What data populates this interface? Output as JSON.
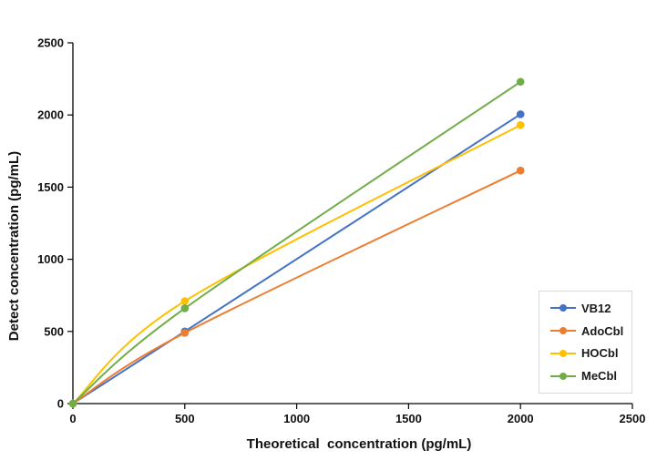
{
  "chart_data": {
    "type": "line",
    "subtype": "scatter-with-smooth-lines-and-markers",
    "title": "",
    "xlabel": "Theoretical  concentration (pg/mL)",
    "ylabel": "Detect concentration (pg/mL)",
    "x": [
      0,
      500,
      2000
    ],
    "series": [
      {
        "name": "VB12",
        "color": "#4472C4",
        "values": [
          0,
          500,
          2005
        ]
      },
      {
        "name": "AdoCbl",
        "color": "#ED7D31",
        "values": [
          0,
          490,
          1615
        ]
      },
      {
        "name": "HOCbl",
        "color": "#FFC000",
        "values": [
          0,
          710,
          1930
        ]
      },
      {
        "name": "MeCbl",
        "color": "#70AD47",
        "values": [
          0,
          660,
          2230
        ]
      }
    ],
    "xlim": [
      0,
      2500
    ],
    "ylim": [
      0,
      2500
    ],
    "x_ticks": [
      0,
      500,
      1000,
      1500,
      2000,
      2500
    ],
    "y_ticks": [
      0,
      500,
      1000,
      1500,
      2000,
      2500
    ],
    "grid": false,
    "legend": {
      "position": "middle-right",
      "entries": [
        "VB12",
        "AdoCbl",
        "HOCbl",
        "MeCbl"
      ],
      "border_color": "#d9d9d9",
      "background": "#ffffff"
    },
    "axis_color": "#000000",
    "tick_label_color": "#111111",
    "background": "#ffffff"
  }
}
